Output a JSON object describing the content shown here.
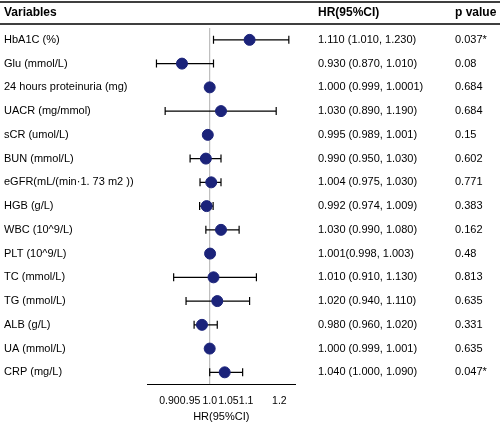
{
  "chart_data": {
    "type": "scatter",
    "column_headers": [
      "Variables",
      "HR(95%CI)",
      "p value"
    ],
    "x_label": "HR(95%CI)",
    "categories": [
      "HbA1C (%)",
      "Glu (mmol/L)",
      "24 hours proteinuria (mg)",
      "UACR (mg/mmol)",
      "sCR (umol/L)",
      "BUN (mmol/L)",
      "eGFR(mL/(min·1. 73 m2 ))",
      "HGB (g/L)",
      "WBC (10^9/L)",
      "PLT (10^9/L)",
      "TC (mmol/L)",
      "TG (mmol/L)",
      "ALB (g/L)",
      "UA (mmol/L)",
      "CRP (mg/L)"
    ],
    "values": [
      1.11,
      0.93,
      1.0,
      1.03,
      0.995,
      0.99,
      1.004,
      0.992,
      1.03,
      1.001,
      1.01,
      1.02,
      0.98,
      1.0,
      1.04
    ],
    "ci_low": [
      1.01,
      0.87,
      0.999,
      0.89,
      0.989,
      0.95,
      0.975,
      0.974,
      0.99,
      0.998,
      0.91,
      0.94,
      0.96,
      0.999,
      1.0
    ],
    "ci_high": [
      1.23,
      1.01,
      1.0001,
      1.19,
      1.001,
      1.03,
      1.03,
      1.009,
      1.08,
      1.003,
      1.13,
      1.11,
      1.02,
      1.001,
      1.09
    ],
    "ci_labels": [
      "1.110 (1.010, 1.230)",
      "0.930 (0.870, 1.010)",
      "1.000 (0.999, 1.0001)",
      "1.030 (0.890, 1.190)",
      "0.995 (0.989, 1.001)",
      "0.990 (0.950, 1.030)",
      "1.004 (0.975, 1.030)",
      "0.992 (0.974, 1.009)",
      "1.030 (0.990, 1.080)",
      "1.001(0.998, 1.003)",
      "1.010 (0.910, 1.130)",
      "1.020 (0.940, 1.110)",
      "0.980 (0.960, 1.020)",
      "1.000 (0.999, 1.001)",
      "1.040 (1.000, 1.090)"
    ],
    "p_labels": [
      "0.037*",
      "0.08",
      "0.684",
      "0.684",
      "0.15",
      "0.602",
      "0.771",
      "0.383",
      "0.162",
      "0.48",
      "0.813",
      "0.635",
      "0.331",
      "0.635",
      "0.047*"
    ],
    "reference_line": 1,
    "xlim": [
      0.85,
      1.25
    ],
    "xticks": [
      {
        "value": 0.9,
        "label": "0.90"
      },
      0.95,
      {
        "value": 1,
        "label": "1.0"
      },
      1.05,
      1.1,
      1.2
    ],
    "log": "x",
    "grid": false,
    "color": "#1b237a",
    "marker": "circle"
  }
}
